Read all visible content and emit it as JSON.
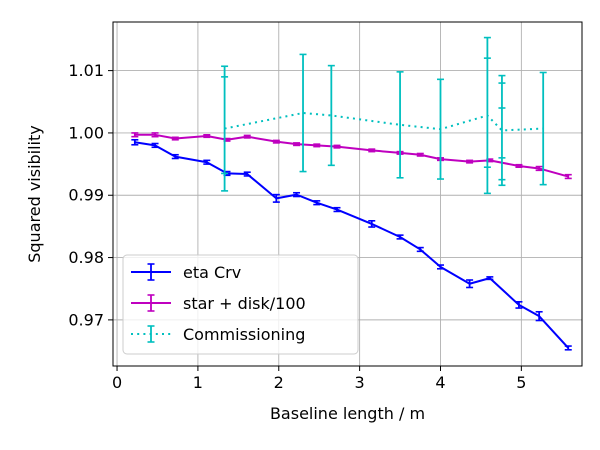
{
  "chart_data": {
    "type": "line",
    "title": "",
    "xlabel": "Baseline length / m",
    "ylabel": "Squared visibility",
    "xlim": [
      -0.05,
      5.75
    ],
    "ylim": [
      0.9626,
      1.0178
    ],
    "xticks": [
      0,
      1,
      2,
      3,
      4,
      5
    ],
    "xtick_labels": [
      "0",
      "1",
      "2",
      "3",
      "4",
      "5"
    ],
    "yticks": [
      0.97,
      0.98,
      0.99,
      1.0,
      1.01
    ],
    "ytick_labels": [
      "0.97",
      "0.98",
      "0.99",
      "1.00",
      "1.01"
    ],
    "grid": true,
    "legend_position": "bottom-left",
    "series": [
      {
        "name": "eta Crv",
        "color": "#0000ff",
        "linestyle": "solid",
        "x": [
          0.22,
          0.47,
          0.72,
          1.11,
          1.36,
          1.61,
          1.97,
          2.22,
          2.47,
          2.72,
          3.15,
          3.5,
          3.75,
          4.0,
          4.36,
          4.61,
          4.97,
          5.22,
          5.58
        ],
        "y": [
          0.9985,
          0.998,
          0.9962,
          0.9953,
          0.9935,
          0.9934,
          0.9895,
          0.9901,
          0.9888,
          0.9877,
          0.9854,
          0.9833,
          0.9813,
          0.9785,
          0.9758,
          0.9767,
          0.9724,
          0.9706,
          0.9655
        ],
        "yerr": [
          0.0004,
          0.0003,
          0.0003,
          0.0003,
          0.0003,
          0.0003,
          0.0006,
          0.0003,
          0.0003,
          0.0003,
          0.0005,
          0.0003,
          0.0003,
          0.0003,
          0.0006,
          0.0002,
          0.0005,
          0.0007,
          0.0003
        ]
      },
      {
        "name": "star + disk/100",
        "color": "#bf00bf",
        "linestyle": "solid",
        "x": [
          0.22,
          0.47,
          0.72,
          1.11,
          1.36,
          1.61,
          1.97,
          2.22,
          2.47,
          2.72,
          3.15,
          3.5,
          3.75,
          4.0,
          4.36,
          4.61,
          4.97,
          5.22,
          5.58
        ],
        "y": [
          0.9997,
          0.9997,
          0.9991,
          0.9995,
          0.9989,
          0.9994,
          0.9986,
          0.9982,
          0.998,
          0.9978,
          0.9972,
          0.9968,
          0.9965,
          0.9958,
          0.9954,
          0.9956,
          0.9947,
          0.9943,
          0.993
        ],
        "yerr": [
          0.0003,
          0.0003,
          0.0002,
          0.0002,
          0.0002,
          0.0002,
          0.0002,
          0.0002,
          0.0002,
          0.0002,
          0.0002,
          0.0002,
          0.0002,
          0.0002,
          0.0002,
          0.0002,
          0.0002,
          0.0003,
          0.0003
        ]
      },
      {
        "name": "Commissioning",
        "color": "#00bfbf",
        "linestyle": "dotted",
        "x": [
          1.33,
          2.3,
          2.65,
          3.5,
          4.0,
          4.58,
          4.76,
          5.27
        ],
        "y": [
          1.0007,
          1.0032,
          1.0028,
          1.0013,
          1.0006,
          1.0028,
          1.0004,
          1.0007
        ],
        "yerr": [
          0.01,
          0.0094,
          0.008,
          0.0085,
          0.008,
          0.0125,
          0.0088,
          0.009
        ],
        "extra_caps": [
          [
            1.33,
            1.009,
            0.9935
          ],
          [
            4.58,
            1.012,
            0.9945
          ],
          [
            4.76,
            1.008,
            0.9925
          ],
          [
            4.76,
            1.004,
            0.996
          ]
        ]
      }
    ]
  }
}
